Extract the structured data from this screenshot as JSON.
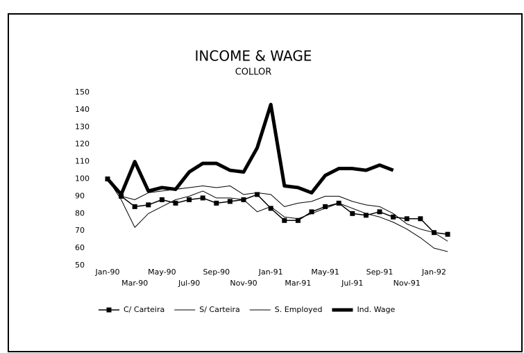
{
  "chart_data": {
    "type": "line",
    "title": "INCOME & WAGE",
    "subtitle": "COLLOR",
    "categories": [
      "Jan-90",
      null,
      "Mar-90",
      null,
      "May-90",
      null,
      "Jul-90",
      null,
      "Sep-90",
      null,
      "Nov-90",
      null,
      "Jan-91",
      null,
      "Mar-91",
      null,
      "May-91",
      null,
      "Jul-91",
      null,
      "Sep-91",
      null,
      "Nov-91",
      null,
      "Jan-92",
      null
    ],
    "series": [
      {
        "name": "C/ Carteira",
        "color": "#000000",
        "line_width": 1.5,
        "marker": "square",
        "values": [
          100,
          90,
          84,
          85,
          88,
          86,
          88,
          89,
          86,
          87,
          88,
          91,
          83,
          76,
          76,
          81,
          84,
          86,
          80,
          79,
          81,
          78,
          77,
          77,
          69,
          68
        ]
      },
      {
        "name": "S/ Carteira",
        "color": "#000000",
        "line_width": 1,
        "marker": "none",
        "values": [
          100,
          88,
          72,
          80,
          84,
          88,
          90,
          93,
          89,
          89,
          88,
          81,
          84,
          78,
          77,
          80,
          83,
          86,
          83,
          80,
          78,
          75,
          71,
          66,
          60,
          58
        ]
      },
      {
        "name": "S. Employed",
        "color": "#000000",
        "line_width": 1,
        "marker": "none",
        "values": [
          100,
          90,
          88,
          92,
          93,
          94,
          95,
          96,
          95,
          96,
          91,
          92,
          91,
          84,
          86,
          87,
          90,
          90,
          87,
          85,
          84,
          80,
          74,
          71,
          69,
          64
        ]
      },
      {
        "name": "Ind. Wage",
        "color": "#000000",
        "line_width": 5,
        "marker": "none",
        "values": [
          100,
          91,
          110,
          93,
          95,
          94,
          104,
          109,
          109,
          105,
          104,
          118,
          143,
          96,
          95,
          92,
          102,
          106,
          106,
          105,
          108,
          105,
          null,
          null,
          null,
          null
        ]
      }
    ],
    "ylim": [
      50,
      150
    ],
    "yticks": [
      50,
      60,
      70,
      80,
      90,
      100,
      110,
      120,
      130,
      140,
      150
    ],
    "grid": false
  }
}
